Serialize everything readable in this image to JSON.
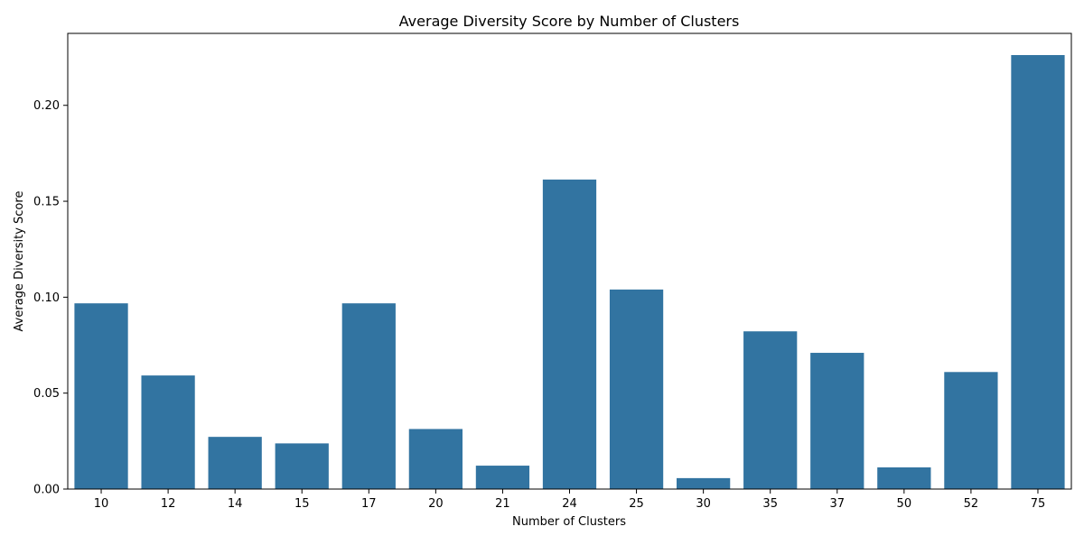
{
  "chart_data": {
    "type": "bar",
    "title": "Average Diversity Score by Number of Clusters",
    "xlabel": "Number of Clusters",
    "ylabel": "Average Diversity Score",
    "categories": [
      "10",
      "12",
      "14",
      "15",
      "17",
      "20",
      "21",
      "24",
      "25",
      "30",
      "35",
      "37",
      "50",
      "52",
      "75"
    ],
    "values": [
      0.0968,
      0.0592,
      0.0272,
      0.0238,
      0.0968,
      0.0313,
      0.0122,
      0.1613,
      0.104,
      0.0057,
      0.0822,
      0.071,
      0.0113,
      0.061,
      0.2262
    ],
    "ylim": [
      0,
      0.2375
    ],
    "yticks": [
      0.0,
      0.05,
      0.1,
      0.15,
      0.2
    ],
    "ytick_labels": [
      "0.00",
      "0.05",
      "0.10",
      "0.15",
      "0.20"
    ],
    "grid": false,
    "bar_color": "#3274a1"
  }
}
